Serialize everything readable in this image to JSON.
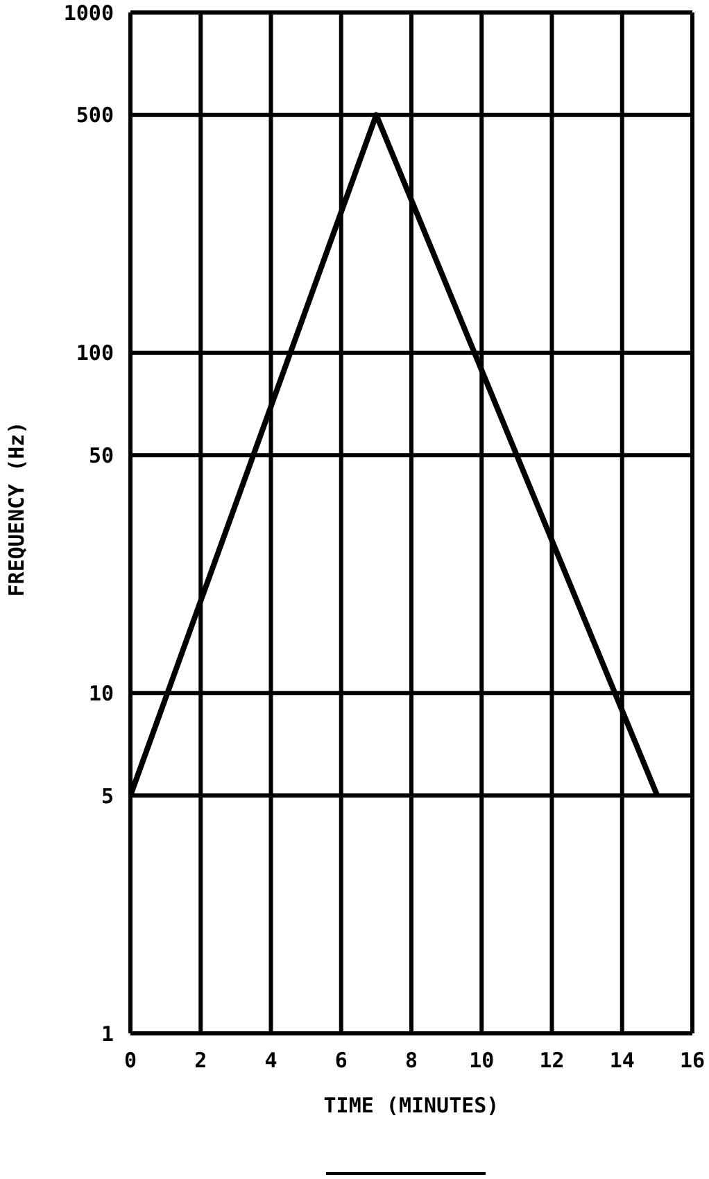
{
  "chart_data": {
    "type": "line",
    "xlabel": "TIME (MINUTES)",
    "ylabel": "FREQUENCY (Hz)",
    "x": [
      0,
      7,
      15
    ],
    "values": [
      5,
      500,
      5
    ],
    "color": "#000000",
    "xlim": [
      0,
      16
    ],
    "xticks": [
      0,
      2,
      4,
      6,
      8,
      10,
      12,
      14,
      16
    ],
    "ylim": [
      1,
      1000
    ],
    "yticks": [
      1,
      5,
      10,
      50,
      100,
      500,
      1000
    ],
    "log": "y",
    "grid": true
  }
}
